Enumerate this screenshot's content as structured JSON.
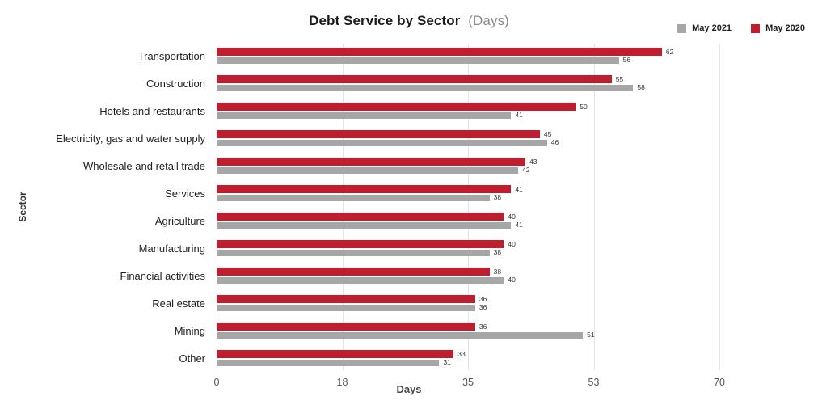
{
  "title": {
    "main": "Debt Service by Sector",
    "sub": "(Days)"
  },
  "legend": {
    "items": [
      {
        "label": "May 2021",
        "color": "#a6a6a6"
      },
      {
        "label": "May 2020",
        "color": "#c01e2f"
      }
    ]
  },
  "axes": {
    "x_label": "Days",
    "y_label": "Sector",
    "tick_labels": [
      "0",
      "18",
      "35",
      "53",
      "70"
    ],
    "tick_positions": [
      0,
      25,
      50,
      75,
      100
    ]
  },
  "chart_data": {
    "type": "bar",
    "orientation": "horizontal",
    "title": "Debt Service by Sector (Days)",
    "xlabel": "Days",
    "ylabel": "Sector",
    "xlim": [
      0,
      70
    ],
    "x_ticks": [
      0,
      18,
      35,
      53,
      70
    ],
    "grid": true,
    "legend_position": "top-right",
    "categories": [
      "Transportation",
      "Construction",
      "Hotels and restaurants",
      "Electricity, gas and water supply",
      "Wholesale and retail trade",
      "Services",
      "Agriculture",
      "Manufacturing",
      "Financial activities",
      "Real estate",
      "Mining",
      "Other"
    ],
    "series": [
      {
        "name": "May 2020",
        "color": "#c01e2f",
        "values": [
          62,
          55,
          50,
          45,
          43,
          41,
          40,
          40,
          38,
          36,
          36,
          33
        ]
      },
      {
        "name": "May 2021",
        "color": "#a6a6a6",
        "values": [
          56,
          58,
          41,
          46,
          42,
          38,
          41,
          38,
          40,
          36,
          51,
          31
        ]
      }
    ]
  }
}
